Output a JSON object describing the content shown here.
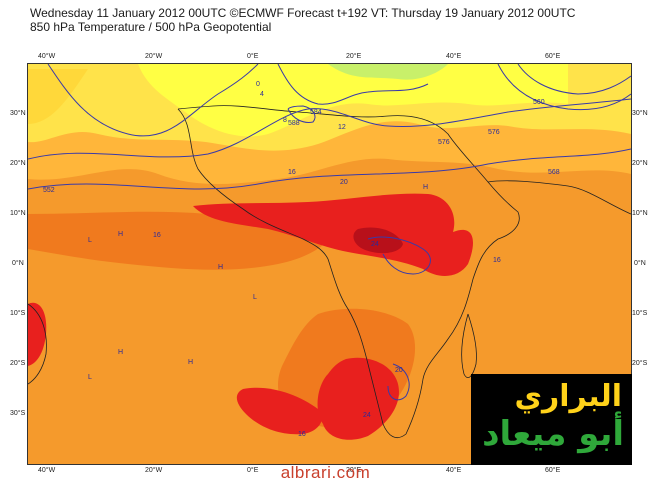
{
  "header": {
    "line1": "Wednesday 11 January 2012 00UTC ©ECMWF Forecast t+192 VT: Thursday 19 January 2012 00UTC",
    "line2": "850 hPa Temperature / 500 hPa Geopotential"
  },
  "map": {
    "lon_labels_top": [
      "40°W",
      "20°W",
      "0°E",
      "20°E",
      "40°E",
      "60°E"
    ],
    "lon_labels_bottom": [
      "40°W",
      "20°W",
      "0°E",
      "20°E",
      "40°E",
      "60°E"
    ],
    "lat_labels_left": [
      "30°N",
      "20°N",
      "10°N",
      "0°N",
      "10°S",
      "20°S",
      "30°S"
    ],
    "lat_labels_right": [
      "30°N",
      "20°N",
      "10°N",
      "0°N",
      "10°S",
      "20°S",
      "30°S"
    ],
    "contour_labels": {
      "geopotential": [
        "588",
        "584",
        "576",
        "568",
        "560",
        "552",
        "576"
      ],
      "temperature": [
        "16",
        "12",
        "16",
        "20",
        "24",
        "16",
        "24",
        "20",
        "16",
        "8",
        "4",
        "0"
      ]
    },
    "pressure_marks": [
      "H",
      "L"
    ],
    "colors": {
      "warm_orange": "#f59a2c",
      "orange_deep": "#f07a1e",
      "red": "#e8201e",
      "dark_red": "#c8101a",
      "yellow": "#ffff33",
      "light_yellow": "#ffe34a",
      "green_cool": "#c8f06a",
      "contour": "#3a3aa8"
    }
  },
  "logo": {
    "line1": "البراري",
    "line2": "أبو ميعاد"
  },
  "footer": {
    "site": "albrari.com"
  }
}
